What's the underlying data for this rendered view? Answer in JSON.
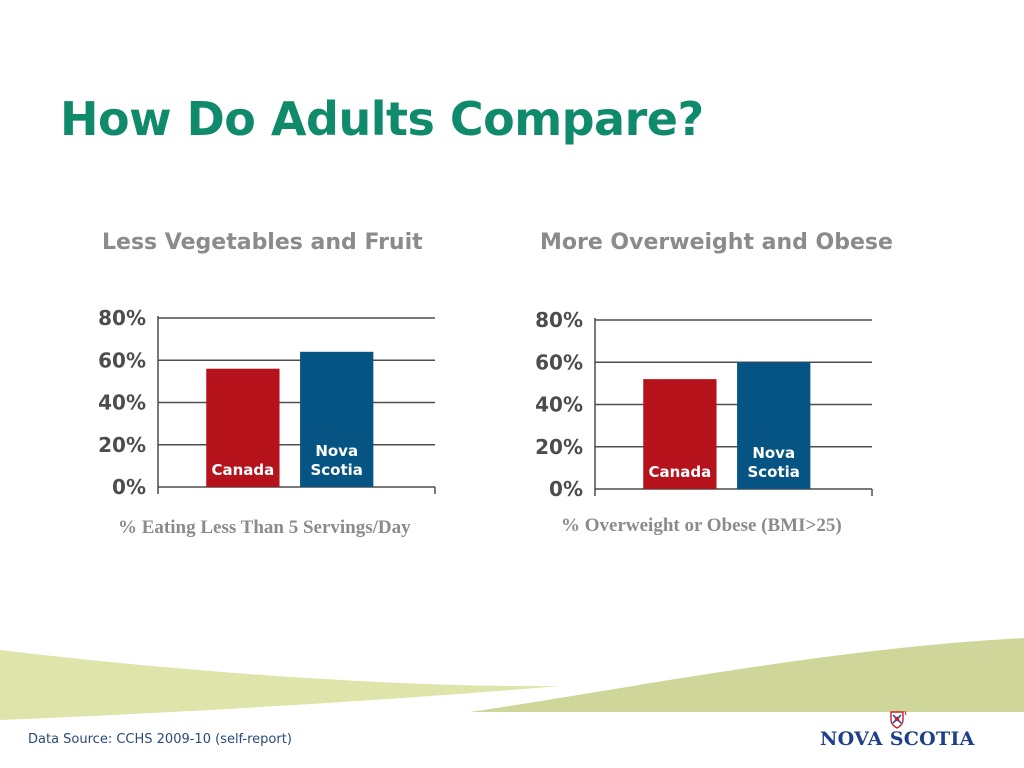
{
  "slide": {
    "title": "How Do Adults Compare?",
    "footer": "Data Source: CCHS 2009-10 (self-report)",
    "logo_text": "NOVA SCOTIA"
  },
  "colors": {
    "title": "#0f8a6a",
    "canada": "#b5121b",
    "nova_scotia": "#065483",
    "gridline": "#4d4d4d",
    "swoosh": "#d5dc9c"
  },
  "chart_data": [
    {
      "type": "bar",
      "title": "Less Vegetables and Fruit",
      "xlabel": "% Eating Less Than 5 Servings/Day",
      "ylabel": "",
      "ylim": [
        0,
        80
      ],
      "yticks": [
        "0%",
        "20%",
        "40%",
        "60%",
        "80%"
      ],
      "grid": true,
      "categories": [
        "Canada",
        "Nova Scotia"
      ],
      "bar_labels": [
        [
          "Canada"
        ],
        [
          "Nova",
          "Scotia"
        ]
      ],
      "values": [
        56,
        64
      ],
      "colors": [
        "#b5121b",
        "#065483"
      ]
    },
    {
      "type": "bar",
      "title": "More Overweight and Obese",
      "xlabel": "% Overweight or Obese (BMI>25)",
      "ylabel": "",
      "ylim": [
        0,
        80
      ],
      "yticks": [
        "0%",
        "20%",
        "40%",
        "60%",
        "80%"
      ],
      "grid": true,
      "categories": [
        "Canada",
        "Nova Scotia"
      ],
      "bar_labels": [
        [
          "Canada"
        ],
        [
          "Nova",
          "Scotia"
        ]
      ],
      "values": [
        52,
        60
      ],
      "colors": [
        "#b5121b",
        "#065483"
      ]
    }
  ]
}
